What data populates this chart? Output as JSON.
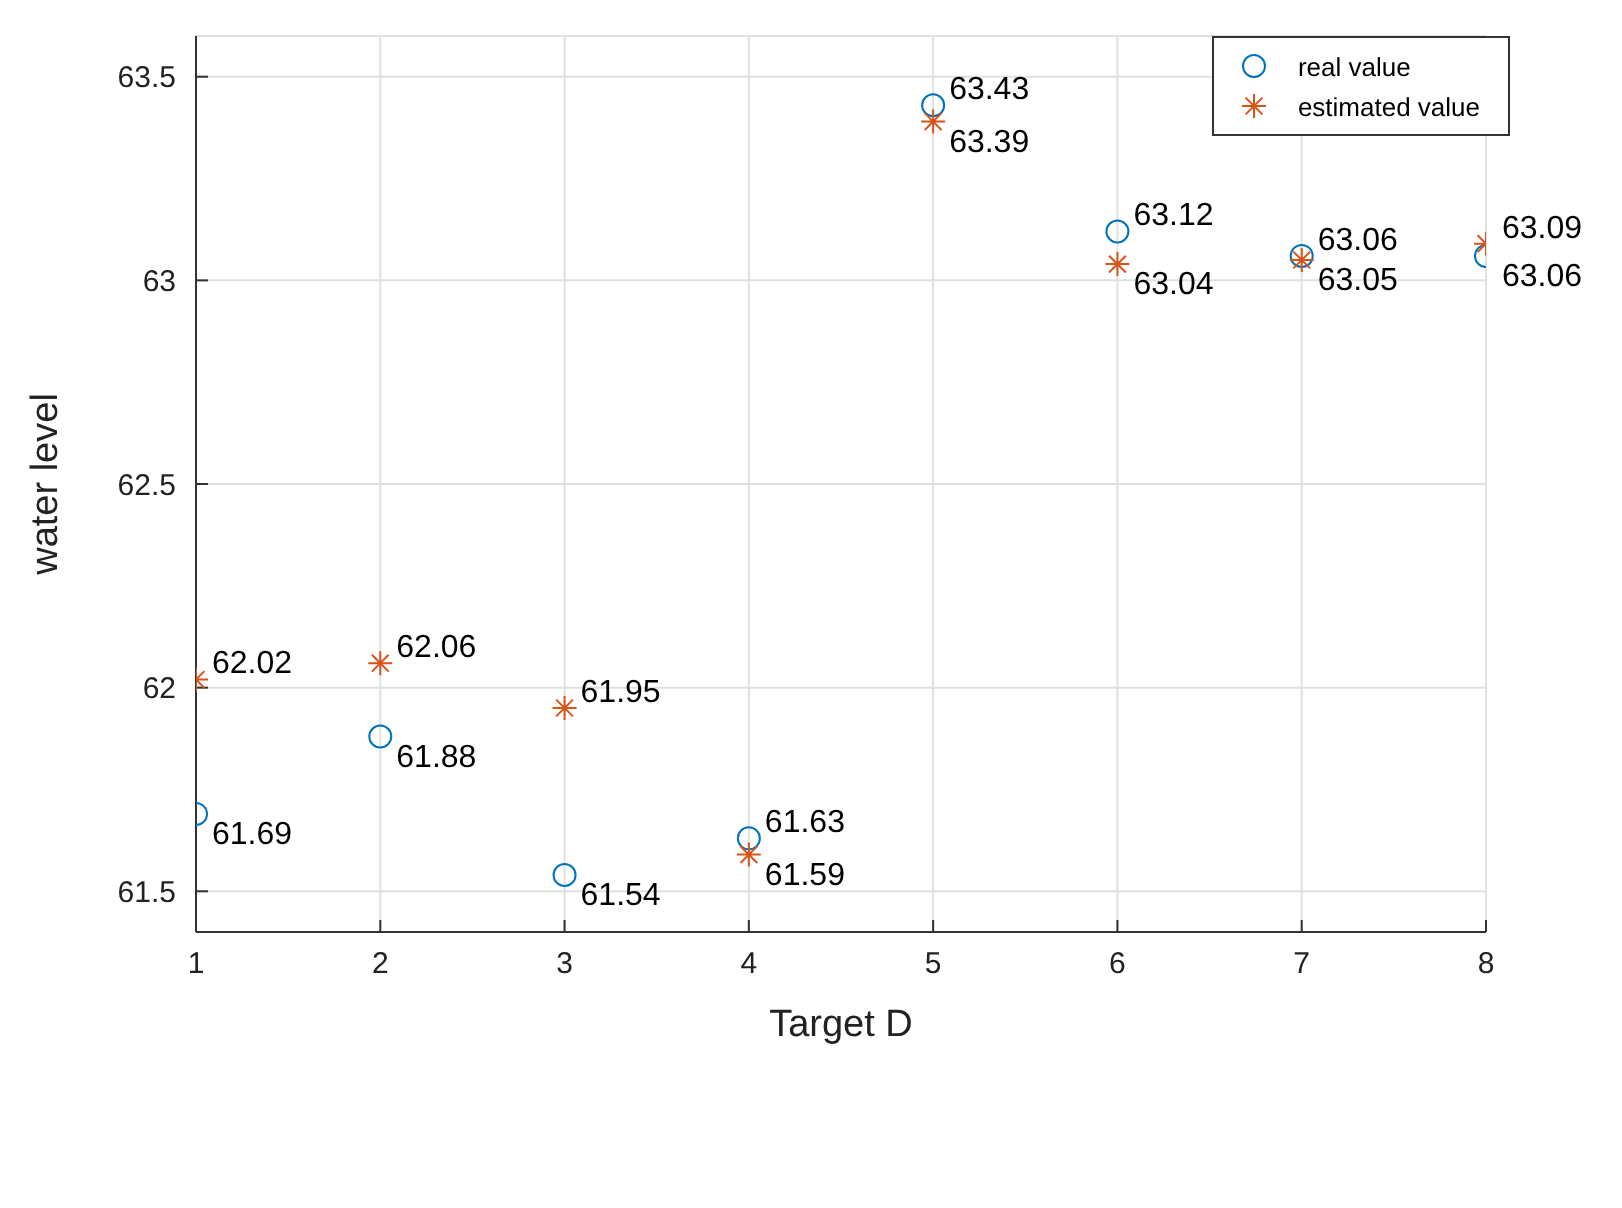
{
  "chart_data": {
    "type": "scatter",
    "xlabel": "Target D",
    "ylabel": "water level",
    "x": [
      1,
      2,
      3,
      4,
      5,
      6,
      7,
      8
    ],
    "series": [
      {
        "name": "real value",
        "color": "#0072bd",
        "marker": "circle",
        "values": [
          61.69,
          61.88,
          61.54,
          61.63,
          63.43,
          63.12,
          63.06,
          63.06
        ]
      },
      {
        "name": "estimated value",
        "color": "#d95319",
        "marker": "cross",
        "values": [
          62.02,
          62.06,
          61.95,
          61.59,
          63.39,
          63.04,
          63.05,
          63.09
        ]
      }
    ],
    "xlim": [
      1,
      8
    ],
    "xticks": [
      1,
      2,
      3,
      4,
      5,
      6,
      7,
      8
    ],
    "ylim": [
      61.4,
      63.6
    ],
    "yticks": [
      61.5,
      62,
      62.5,
      63,
      63.5
    ],
    "grid": true,
    "legend": "top right",
    "data_labels": true
  }
}
